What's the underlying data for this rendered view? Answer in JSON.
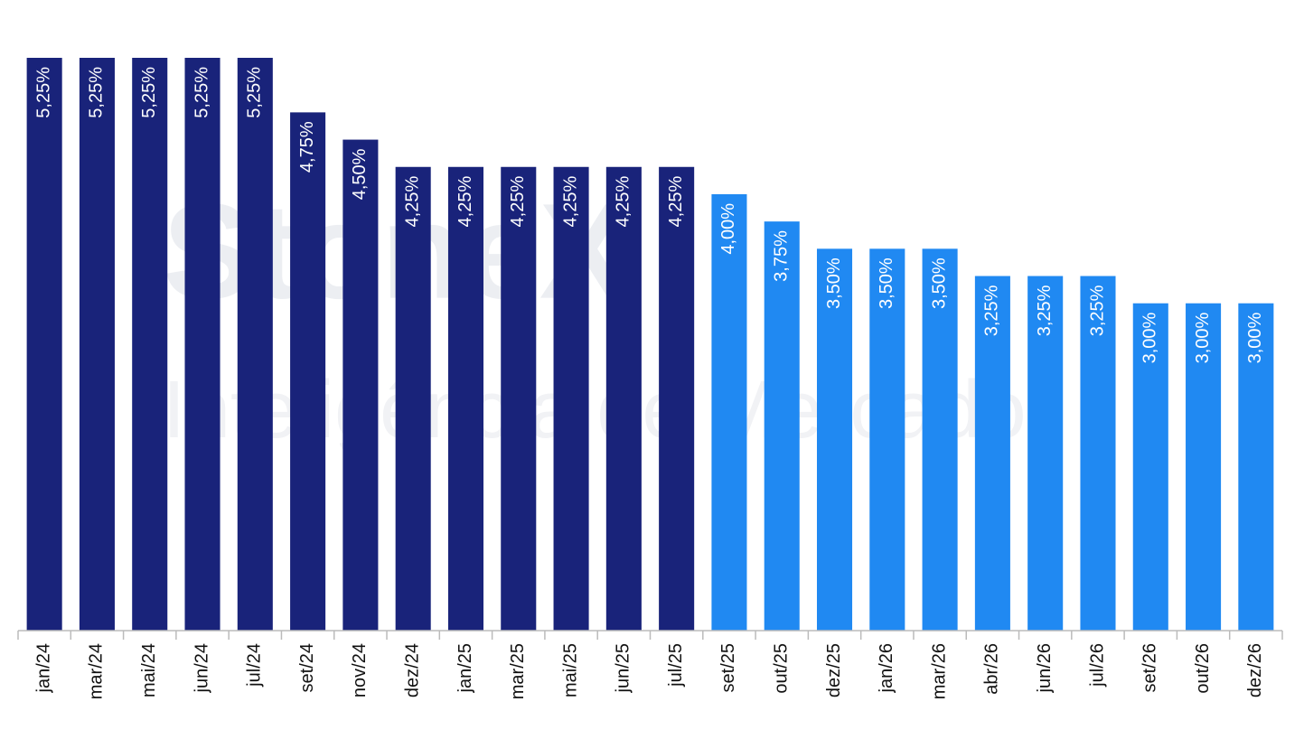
{
  "chart_data": {
    "type": "bar",
    "watermark": [
      "StoneX",
      "Inteligência de Mercado"
    ],
    "categories": [
      "jan/24",
      "mar/24",
      "mai/24",
      "jun/24",
      "jul/24",
      "set/24",
      "nov/24",
      "dez/24",
      "jan/25",
      "mar/25",
      "mai/25",
      "jun/25",
      "jul/25",
      "set/25",
      "out/25",
      "dez/25",
      "jan/26",
      "mar/26",
      "abr/26",
      "jun/26",
      "jul/26",
      "set/26",
      "out/26",
      "dez/26"
    ],
    "values": [
      5.25,
      5.25,
      5.25,
      5.25,
      5.25,
      4.75,
      4.5,
      4.25,
      4.25,
      4.25,
      4.25,
      4.25,
      4.25,
      4.0,
      3.75,
      3.5,
      3.5,
      3.5,
      3.25,
      3.25,
      3.25,
      3.0,
      3.0,
      3.0
    ],
    "value_labels": [
      "5,25%",
      "5,25%",
      "5,25%",
      "5,25%",
      "5,25%",
      "4,75%",
      "4,50%",
      "4,25%",
      "4,25%",
      "4,25%",
      "4,25%",
      "4,25%",
      "4,25%",
      "4,00%",
      "3,75%",
      "3,50%",
      "3,50%",
      "3,50%",
      "3,25%",
      "3,25%",
      "3,25%",
      "3,00%",
      "3,00%",
      "3,00%"
    ],
    "colors": [
      "#19237a",
      "#19237a",
      "#19237a",
      "#19237a",
      "#19237a",
      "#19237a",
      "#19237a",
      "#19237a",
      "#19237a",
      "#19237a",
      "#19237a",
      "#19237a",
      "#19237a",
      "#2089f2",
      "#2089f2",
      "#2089f2",
      "#2089f2",
      "#2089f2",
      "#2089f2",
      "#2089f2",
      "#2089f2",
      "#2089f2",
      "#2089f2",
      "#2089f2"
    ],
    "ylim": [
      0,
      5.25
    ]
  }
}
